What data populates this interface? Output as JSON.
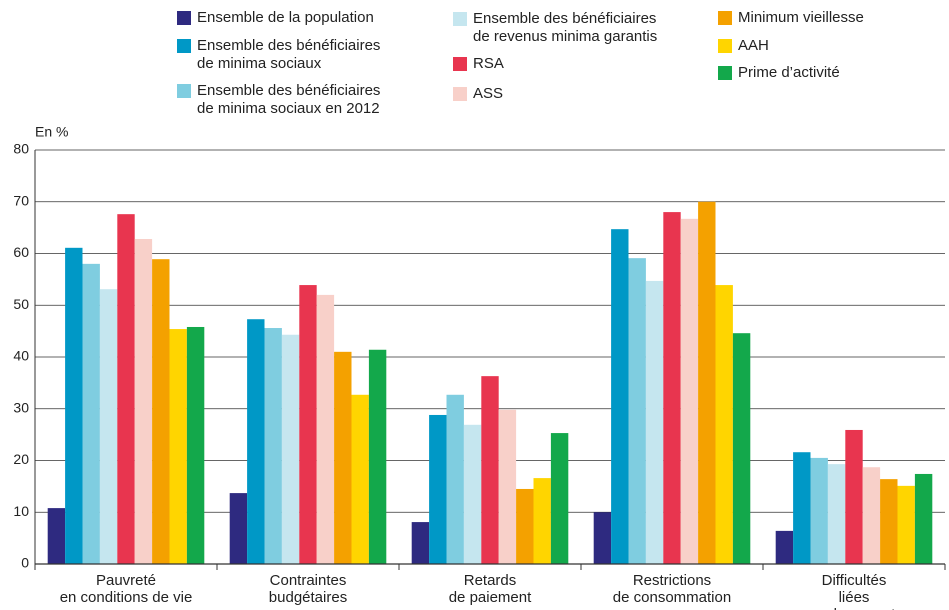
{
  "chart_data": {
    "type": "bar",
    "y_unit_label": "En %",
    "categories": [
      "Pauvreté\nen conditions de vie",
      "Contraintes\nbudgétaires",
      "Retards\nde paiement",
      "Restrictions\nde consommation",
      "Difficultés liées\nau logement"
    ],
    "series": [
      {
        "name": "Ensemble de la population",
        "color": "#2e2a80",
        "values": [
          10.8,
          13.7,
          8.1,
          10.0,
          6.4
        ]
      },
      {
        "name": "Ensemble des bénéficiaires\nde minima sociaux",
        "color": "#0098c6",
        "values": [
          61.1,
          47.3,
          28.8,
          64.7,
          21.6
        ]
      },
      {
        "name": "Ensemble des bénéficiaires\nde minima sociaux en 2012",
        "color": "#7fcde0",
        "values": [
          58.0,
          45.6,
          32.7,
          59.1,
          20.5
        ]
      },
      {
        "name": "Ensemble des bénéficiaires\nde revenus minima garantis",
        "color": "#c5e6ef",
        "values": [
          53.1,
          44.3,
          26.9,
          54.7,
          19.3
        ]
      },
      {
        "name": "RSA",
        "color": "#e8354f",
        "values": [
          67.6,
          53.9,
          36.3,
          68.0,
          25.9
        ]
      },
      {
        "name": "ASS",
        "color": "#f8d0c9",
        "values": [
          62.8,
          52.0,
          29.8,
          66.7,
          18.7
        ]
      },
      {
        "name": "Minimum vieillesse",
        "color": "#f4a100",
        "values": [
          58.9,
          41.0,
          14.5,
          70.0,
          16.4
        ]
      },
      {
        "name": "AAH",
        "color": "#ffd500",
        "values": [
          45.4,
          32.7,
          16.6,
          53.9,
          15.1
        ]
      },
      {
        "name": "Prime d’activité",
        "color": "#13a84b",
        "values": [
          45.8,
          41.4,
          25.3,
          44.6,
          17.4
        ]
      }
    ],
    "ylim": [
      0,
      80
    ],
    "yticks": [
      0,
      10,
      20,
      30,
      40,
      50,
      60,
      70,
      80
    ],
    "grid": true
  }
}
